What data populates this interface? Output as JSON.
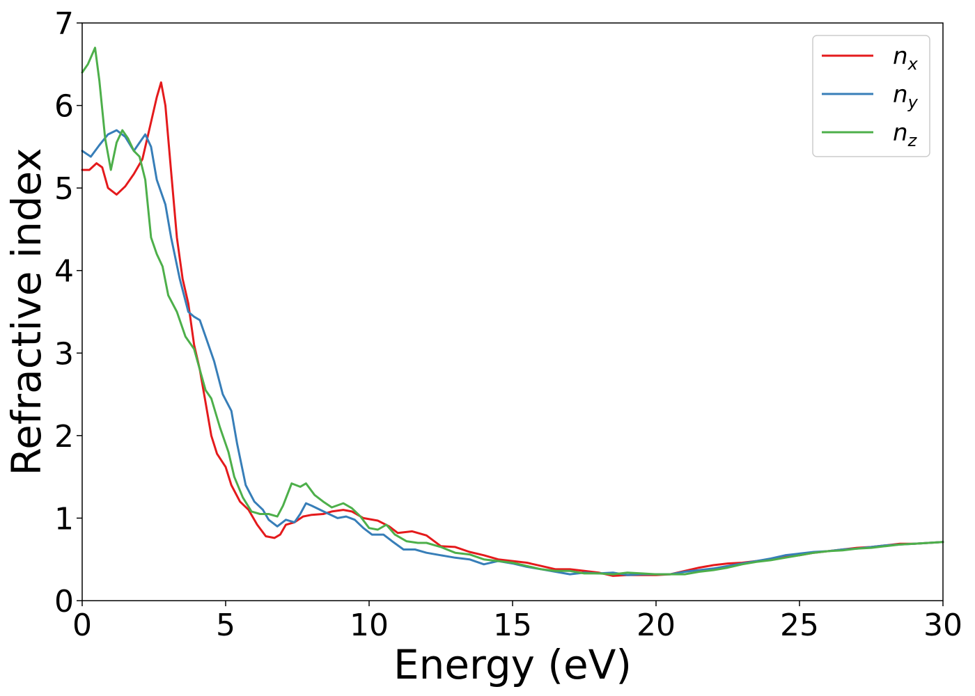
{
  "chart_data": {
    "type": "line",
    "title": "",
    "xlabel": "Energy (eV)",
    "ylabel": "Refractive index",
    "xlim": [
      0,
      30
    ],
    "ylim": [
      0,
      7
    ],
    "xticks": [
      0,
      5,
      10,
      15,
      20,
      25,
      30
    ],
    "yticks": [
      0,
      1,
      2,
      3,
      4,
      5,
      6,
      7
    ],
    "grid": false,
    "legend_position": "top-right",
    "series": [
      {
        "name": "n",
        "subscript": "x",
        "color": "#e41a1c",
        "points": [
          [
            0,
            5.22
          ],
          [
            0.25,
            5.22
          ],
          [
            0.5,
            5.3
          ],
          [
            0.7,
            5.25
          ],
          [
            0.9,
            5.0
          ],
          [
            1.2,
            4.92
          ],
          [
            1.5,
            5.02
          ],
          [
            1.8,
            5.17
          ],
          [
            2.1,
            5.35
          ],
          [
            2.4,
            5.8
          ],
          [
            2.6,
            6.1
          ],
          [
            2.75,
            6.28
          ],
          [
            2.9,
            6.0
          ],
          [
            3.1,
            5.2
          ],
          [
            3.3,
            4.4
          ],
          [
            3.5,
            3.9
          ],
          [
            3.7,
            3.6
          ],
          [
            3.9,
            3.1
          ],
          [
            4.1,
            2.8
          ],
          [
            4.3,
            2.4
          ],
          [
            4.5,
            2.0
          ],
          [
            4.7,
            1.78
          ],
          [
            5.0,
            1.62
          ],
          [
            5.2,
            1.4
          ],
          [
            5.5,
            1.2
          ],
          [
            5.8,
            1.1
          ],
          [
            6.1,
            0.92
          ],
          [
            6.4,
            0.78
          ],
          [
            6.7,
            0.76
          ],
          [
            6.9,
            0.8
          ],
          [
            7.1,
            0.92
          ],
          [
            7.4,
            0.95
          ],
          [
            7.7,
            1.02
          ],
          [
            8.0,
            1.04
          ],
          [
            8.4,
            1.05
          ],
          [
            8.7,
            1.08
          ],
          [
            9.1,
            1.1
          ],
          [
            9.4,
            1.08
          ],
          [
            9.8,
            1.0
          ],
          [
            10.3,
            0.97
          ],
          [
            10.7,
            0.9
          ],
          [
            11.0,
            0.82
          ],
          [
            11.5,
            0.84
          ],
          [
            12.0,
            0.79
          ],
          [
            12.5,
            0.66
          ],
          [
            13.0,
            0.65
          ],
          [
            13.5,
            0.59
          ],
          [
            14.0,
            0.55
          ],
          [
            14.5,
            0.5
          ],
          [
            15.0,
            0.48
          ],
          [
            15.5,
            0.46
          ],
          [
            16.0,
            0.42
          ],
          [
            16.5,
            0.38
          ],
          [
            17.0,
            0.38
          ],
          [
            17.5,
            0.36
          ],
          [
            18.0,
            0.34
          ],
          [
            18.5,
            0.3
          ],
          [
            19.0,
            0.31
          ],
          [
            19.5,
            0.31
          ],
          [
            20.0,
            0.31
          ],
          [
            20.5,
            0.32
          ],
          [
            21.0,
            0.36
          ],
          [
            21.5,
            0.4
          ],
          [
            22.0,
            0.43
          ],
          [
            22.5,
            0.45
          ],
          [
            23.0,
            0.46
          ],
          [
            23.5,
            0.48
          ],
          [
            24.0,
            0.5
          ],
          [
            24.5,
            0.53
          ],
          [
            25.0,
            0.55
          ],
          [
            25.5,
            0.58
          ],
          [
            26.0,
            0.6
          ],
          [
            26.5,
            0.62
          ],
          [
            27.0,
            0.64
          ],
          [
            27.5,
            0.65
          ],
          [
            28.0,
            0.67
          ],
          [
            28.5,
            0.69
          ],
          [
            29.0,
            0.69
          ],
          [
            29.5,
            0.7
          ],
          [
            30.0,
            0.71
          ]
        ]
      },
      {
        "name": "n",
        "subscript": "y",
        "color": "#377eb8",
        "points": [
          [
            0,
            5.45
          ],
          [
            0.3,
            5.38
          ],
          [
            0.6,
            5.52
          ],
          [
            0.9,
            5.65
          ],
          [
            1.2,
            5.7
          ],
          [
            1.5,
            5.62
          ],
          [
            1.8,
            5.45
          ],
          [
            2.0,
            5.55
          ],
          [
            2.2,
            5.65
          ],
          [
            2.4,
            5.5
          ],
          [
            2.6,
            5.1
          ],
          [
            2.9,
            4.8
          ],
          [
            3.1,
            4.4
          ],
          [
            3.4,
            3.9
          ],
          [
            3.7,
            3.5
          ],
          [
            3.9,
            3.44
          ],
          [
            4.1,
            3.4
          ],
          [
            4.3,
            3.2
          ],
          [
            4.6,
            2.9
          ],
          [
            4.9,
            2.5
          ],
          [
            5.2,
            2.3
          ],
          [
            5.4,
            1.9
          ],
          [
            5.7,
            1.4
          ],
          [
            6.0,
            1.2
          ],
          [
            6.3,
            1.1
          ],
          [
            6.5,
            0.98
          ],
          [
            6.8,
            0.9
          ],
          [
            7.1,
            0.98
          ],
          [
            7.4,
            0.95
          ],
          [
            7.6,
            1.05
          ],
          [
            7.8,
            1.18
          ],
          [
            8.0,
            1.15
          ],
          [
            8.3,
            1.1
          ],
          [
            8.6,
            1.05
          ],
          [
            8.9,
            1.0
          ],
          [
            9.2,
            1.02
          ],
          [
            9.5,
            0.98
          ],
          [
            9.8,
            0.88
          ],
          [
            10.1,
            0.8
          ],
          [
            10.5,
            0.8
          ],
          [
            10.8,
            0.72
          ],
          [
            11.2,
            0.62
          ],
          [
            11.6,
            0.62
          ],
          [
            12.0,
            0.58
          ],
          [
            12.5,
            0.55
          ],
          [
            13.0,
            0.52
          ],
          [
            13.5,
            0.5
          ],
          [
            14.0,
            0.44
          ],
          [
            14.5,
            0.48
          ],
          [
            15.0,
            0.45
          ],
          [
            15.5,
            0.41
          ],
          [
            16.0,
            0.38
          ],
          [
            16.5,
            0.35
          ],
          [
            17.0,
            0.32
          ],
          [
            17.5,
            0.34
          ],
          [
            18.0,
            0.33
          ],
          [
            18.5,
            0.34
          ],
          [
            19.0,
            0.31
          ],
          [
            19.5,
            0.32
          ],
          [
            20.0,
            0.32
          ],
          [
            20.5,
            0.32
          ],
          [
            21.0,
            0.35
          ],
          [
            21.5,
            0.37
          ],
          [
            22.0,
            0.39
          ],
          [
            22.5,
            0.42
          ],
          [
            23.0,
            0.45
          ],
          [
            23.5,
            0.48
          ],
          [
            24.0,
            0.51
          ],
          [
            24.5,
            0.55
          ],
          [
            25.0,
            0.57
          ],
          [
            25.5,
            0.59
          ],
          [
            26.0,
            0.6
          ],
          [
            26.5,
            0.62
          ],
          [
            27.0,
            0.63
          ],
          [
            27.5,
            0.65
          ],
          [
            28.0,
            0.67
          ],
          [
            28.5,
            0.68
          ],
          [
            29.0,
            0.69
          ],
          [
            29.5,
            0.7
          ],
          [
            30.0,
            0.71
          ]
        ]
      },
      {
        "name": "n",
        "subscript": "z",
        "color": "#4daf4a",
        "points": [
          [
            0,
            6.4
          ],
          [
            0.2,
            6.5
          ],
          [
            0.45,
            6.7
          ],
          [
            0.6,
            6.3
          ],
          [
            0.8,
            5.6
          ],
          [
            1.0,
            5.22
          ],
          [
            1.2,
            5.55
          ],
          [
            1.4,
            5.7
          ],
          [
            1.6,
            5.6
          ],
          [
            1.8,
            5.45
          ],
          [
            2.0,
            5.38
          ],
          [
            2.2,
            5.1
          ],
          [
            2.4,
            4.4
          ],
          [
            2.6,
            4.2
          ],
          [
            2.8,
            4.05
          ],
          [
            3.0,
            3.7
          ],
          [
            3.3,
            3.5
          ],
          [
            3.6,
            3.2
          ],
          [
            3.9,
            3.05
          ],
          [
            4.1,
            2.8
          ],
          [
            4.3,
            2.55
          ],
          [
            4.5,
            2.45
          ],
          [
            4.8,
            2.1
          ],
          [
            5.1,
            1.8
          ],
          [
            5.3,
            1.5
          ],
          [
            5.6,
            1.25
          ],
          [
            5.9,
            1.08
          ],
          [
            6.2,
            1.05
          ],
          [
            6.5,
            1.05
          ],
          [
            6.8,
            1.02
          ],
          [
            7.0,
            1.15
          ],
          [
            7.3,
            1.42
          ],
          [
            7.6,
            1.38
          ],
          [
            7.8,
            1.42
          ],
          [
            8.1,
            1.28
          ],
          [
            8.4,
            1.2
          ],
          [
            8.7,
            1.13
          ],
          [
            9.1,
            1.18
          ],
          [
            9.4,
            1.12
          ],
          [
            9.7,
            1.02
          ],
          [
            10.0,
            0.88
          ],
          [
            10.3,
            0.86
          ],
          [
            10.6,
            0.92
          ],
          [
            10.9,
            0.8
          ],
          [
            11.3,
            0.72
          ],
          [
            11.7,
            0.7
          ],
          [
            12.0,
            0.7
          ],
          [
            12.5,
            0.65
          ],
          [
            13.0,
            0.58
          ],
          [
            13.5,
            0.56
          ],
          [
            14.0,
            0.5
          ],
          [
            14.5,
            0.48
          ],
          [
            15.0,
            0.46
          ],
          [
            15.5,
            0.42
          ],
          [
            16.0,
            0.38
          ],
          [
            16.5,
            0.36
          ],
          [
            17.0,
            0.36
          ],
          [
            17.5,
            0.33
          ],
          [
            18.0,
            0.33
          ],
          [
            18.5,
            0.32
          ],
          [
            19.0,
            0.34
          ],
          [
            19.5,
            0.33
          ],
          [
            20.0,
            0.32
          ],
          [
            20.5,
            0.32
          ],
          [
            21.0,
            0.32
          ],
          [
            21.5,
            0.35
          ],
          [
            22.0,
            0.37
          ],
          [
            22.5,
            0.4
          ],
          [
            23.0,
            0.44
          ],
          [
            23.5,
            0.47
          ],
          [
            24.0,
            0.49
          ],
          [
            24.5,
            0.52
          ],
          [
            25.0,
            0.55
          ],
          [
            25.5,
            0.58
          ],
          [
            26.0,
            0.6
          ],
          [
            26.5,
            0.61
          ],
          [
            27.0,
            0.63
          ],
          [
            27.5,
            0.64
          ],
          [
            28.0,
            0.66
          ],
          [
            28.5,
            0.68
          ],
          [
            29.0,
            0.69
          ],
          [
            29.5,
            0.7
          ],
          [
            30.0,
            0.71
          ]
        ]
      }
    ]
  }
}
